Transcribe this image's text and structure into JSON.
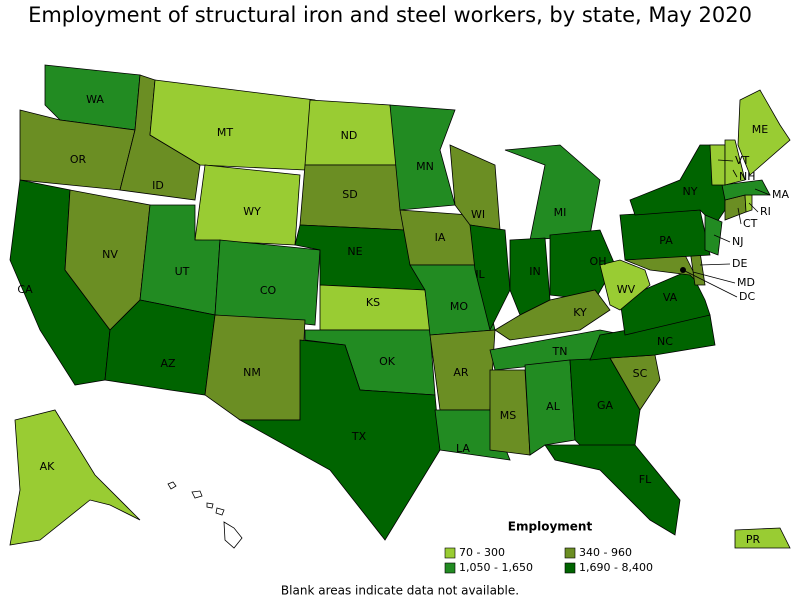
{
  "title": "Employment of structural iron and steel workers, by state, May 2020",
  "legend": {
    "title": "Employment",
    "items": [
      {
        "label": "70 - 300",
        "color": "#99cc33"
      },
      {
        "label": "340 - 960",
        "color": "#6b8e23"
      },
      {
        "label": "1,050 - 1,650",
        "color": "#228b22"
      },
      {
        "label": "1,690 - 8,400",
        "color": "#006400"
      }
    ]
  },
  "footnote": "Blank areas indicate data not available.",
  "states": [
    {
      "label": "WA",
      "color": "#228b22"
    },
    {
      "label": "OR",
      "color": "#6b8e23"
    },
    {
      "label": "CA",
      "color": "#006400"
    },
    {
      "label": "NV",
      "color": "#6b8e23"
    },
    {
      "label": "ID",
      "color": "#6b8e23"
    },
    {
      "label": "MT",
      "color": "#99cc33"
    },
    {
      "label": "WY",
      "color": "#99cc33"
    },
    {
      "label": "UT",
      "color": "#228b22"
    },
    {
      "label": "CO",
      "color": "#228b22"
    },
    {
      "label": "AZ",
      "color": "#006400"
    },
    {
      "label": "NM",
      "color": "#6b8e23"
    },
    {
      "label": "ND",
      "color": "#99cc33"
    },
    {
      "label": "SD",
      "color": "#6b8e23"
    },
    {
      "label": "NE",
      "color": "#006400"
    },
    {
      "label": "KS",
      "color": "#99cc33"
    },
    {
      "label": "OK",
      "color": "#228b22"
    },
    {
      "label": "TX",
      "color": "#006400"
    },
    {
      "label": "MN",
      "color": "#228b22"
    },
    {
      "label": "IA",
      "color": "#6b8e23"
    },
    {
      "label": "MO",
      "color": "#228b22"
    },
    {
      "label": "AR",
      "color": "#6b8e23"
    },
    {
      "label": "LA",
      "color": "#228b22"
    },
    {
      "label": "WI",
      "color": "#6b8e23"
    },
    {
      "label": "IL",
      "color": "#006400"
    },
    {
      "label": "MI",
      "color": "#228b22"
    },
    {
      "label": "IN",
      "color": "#006400"
    },
    {
      "label": "OH",
      "color": "#006400"
    },
    {
      "label": "KY",
      "color": "#6b8e23"
    },
    {
      "label": "TN",
      "color": "#228b22"
    },
    {
      "label": "MS",
      "color": "#6b8e23"
    },
    {
      "label": "AL",
      "color": "#228b22"
    },
    {
      "label": "GA",
      "color": "#006400"
    },
    {
      "label": "FL",
      "color": "#006400"
    },
    {
      "label": "SC",
      "color": "#6b8e23"
    },
    {
      "label": "NC",
      "color": "#006400"
    },
    {
      "label": "VA",
      "color": "#006400"
    },
    {
      "label": "WV",
      "color": "#99cc33"
    },
    {
      "label": "MD",
      "color": "#6b8e23"
    },
    {
      "label": "DE",
      "color": "#6b8e23"
    },
    {
      "label": "PA",
      "color": "#006400"
    },
    {
      "label": "NY",
      "color": "#006400"
    },
    {
      "label": "NJ",
      "color": "#228b22"
    },
    {
      "label": "CT",
      "color": "#6b8e23"
    },
    {
      "label": "RI",
      "color": "#99cc33"
    },
    {
      "label": "MA",
      "color": "#228b22"
    },
    {
      "label": "VT",
      "color": "#99cc33"
    },
    {
      "label": "NH",
      "color": "#99cc33"
    },
    {
      "label": "ME",
      "color": "#99cc33"
    },
    {
      "label": "AK",
      "color": "#99cc33"
    },
    {
      "label": "PR",
      "color": "#99cc33"
    },
    {
      "label": "DC",
      "color": "#000000"
    }
  ]
}
